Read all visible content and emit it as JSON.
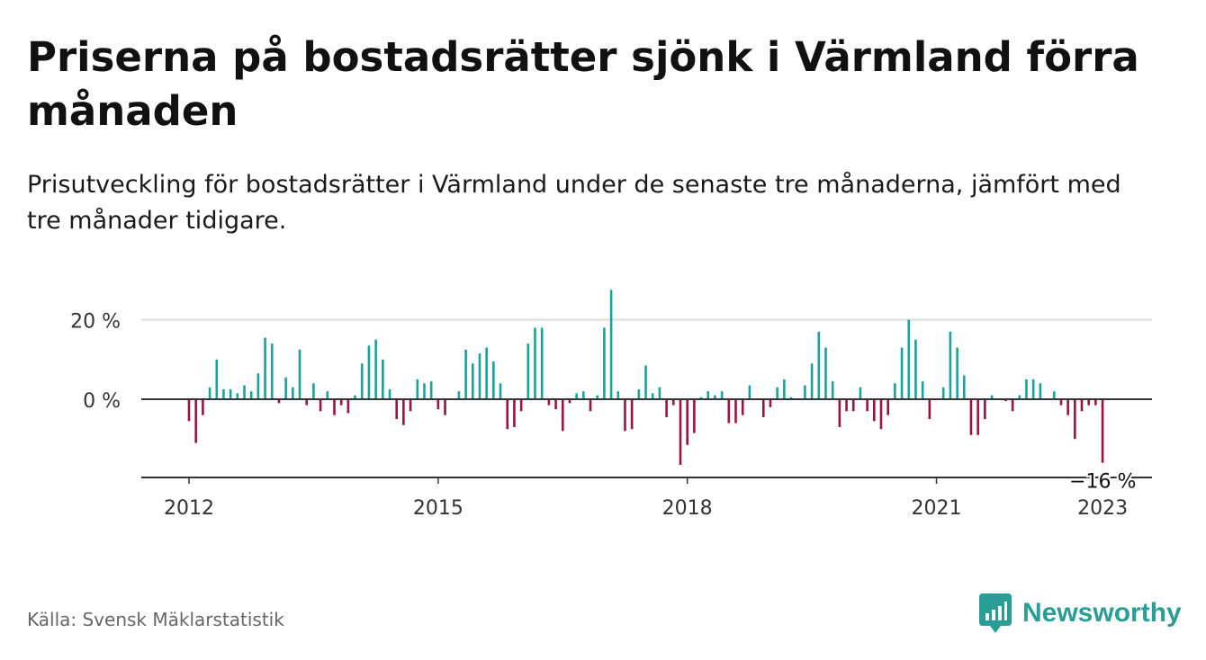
{
  "header": {
    "title": "Priserna på bostadsrätter sjönk i Värmland förra månaden",
    "subtitle": "Prisutveckling för bostadsrätter i Värmland under de senaste tre månaderna, jämfört med tre månader tidigare."
  },
  "footer": {
    "source": "Källa: Svensk Mäklarstatistik",
    "brand": "Newsworthy",
    "brand_icon": "bar-chart-logo-icon"
  },
  "colors": {
    "positive": "#17a3a0",
    "negative": "#a0103e",
    "brand": "#2a9d95",
    "grid": "#dddddd",
    "zero_line": "#333333"
  },
  "chart_data": {
    "type": "bar",
    "title": "",
    "xlabel": "",
    "ylabel": "",
    "x_start": "2012-01",
    "x_frequency": "monthly",
    "y_unit": "%",
    "ylim": [
      -19,
      31
    ],
    "grid": true,
    "y_ticks": [
      {
        "value": 0,
        "label": "0 %"
      },
      {
        "value": 20,
        "label": "20 %"
      }
    ],
    "x_ticks": [
      {
        "index": 0,
        "label": "2012"
      },
      {
        "index": 36,
        "label": "2015"
      },
      {
        "index": 72,
        "label": "2018"
      },
      {
        "index": 108,
        "label": "2021"
      },
      {
        "index": 132,
        "label": "2023"
      }
    ],
    "annotation": {
      "index": 132,
      "label": "−16 %"
    },
    "values": [
      -5.5,
      -11,
      -4,
      3,
      10,
      2.5,
      2.5,
      1.5,
      3.5,
      2,
      6.5,
      15.5,
      14,
      -1,
      5.5,
      3,
      12.5,
      -1.5,
      4,
      -3,
      2,
      -4,
      -1.5,
      -3.5,
      1,
      9,
      13.5,
      15,
      10,
      2.5,
      -5,
      -6.5,
      -3,
      5,
      4,
      4.5,
      -2.5,
      -4,
      0,
      2,
      12.5,
      9,
      11.5,
      13,
      9.5,
      4,
      -7.5,
      -7,
      -3,
      14,
      18,
      18,
      -1.5,
      -2.5,
      -8,
      -1,
      1.5,
      2,
      -3,
      1,
      18,
      27.5,
      2,
      -8,
      -7.5,
      2.5,
      8.5,
      1.5,
      3,
      -4.5,
      -1.5,
      -16.5,
      -11.5,
      -8.5,
      0.5,
      2,
      1,
      2,
      -6,
      -6,
      -4,
      3.5,
      0,
      -4.5,
      -2,
      3,
      5,
      0.5,
      0,
      3.5,
      9,
      17,
      13,
      4.5,
      -7,
      -3,
      -3,
      3,
      -3,
      -5.5,
      -7.5,
      -4,
      4,
      13,
      20,
      15,
      4.5,
      -5,
      0,
      3,
      17,
      13,
      6,
      -9,
      -9,
      -5,
      1,
      0,
      -0.5,
      -3,
      1,
      5,
      5,
      4,
      0,
      2,
      -1.5,
      -4,
      -10,
      -3,
      -1.5,
      -1.5,
      -16
    ]
  }
}
